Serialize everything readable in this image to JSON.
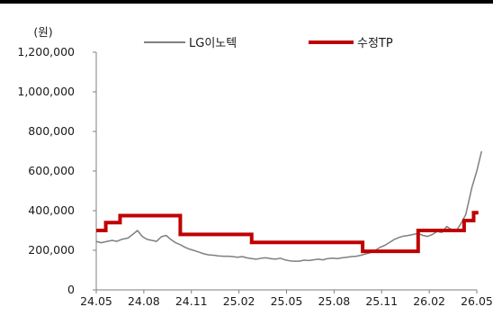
{
  "chart_data": {
    "type": "line",
    "title": "",
    "xlabel": "",
    "ylabel": "(원)",
    "ylim": [
      0,
      1200000
    ],
    "yticks": [
      0,
      200000,
      400000,
      600000,
      800000,
      1000000,
      1200000
    ],
    "ytick_labels": [
      "0",
      "200,000",
      "400,000",
      "600,000",
      "800,000",
      "1,000,000",
      "1,200,000"
    ],
    "xticks": [
      "24.05",
      "24.08",
      "24.11",
      "25.02",
      "25.05",
      "25.08",
      "25.11",
      "26.02",
      "26.05"
    ],
    "grid": false,
    "legend": "top-center",
    "series": [
      {
        "name": "LG이노텍",
        "style": "line",
        "color": "#7f7f7f",
        "x": [
          0.0,
          0.3,
          0.6,
          1.0,
          1.3,
          1.6,
          2.0,
          2.3,
          2.6,
          2.9,
          3.2,
          3.5,
          3.8,
          4.1,
          4.4,
          4.7,
          5.0,
          5.3,
          5.6,
          5.9,
          6.2,
          6.5,
          6.8,
          7.1,
          7.4,
          7.7,
          8.0,
          8.3,
          8.6,
          8.9,
          9.2,
          9.5,
          9.8,
          10.1,
          10.4,
          10.7,
          11.0,
          11.3,
          11.6,
          11.9,
          12.2,
          12.5,
          12.8,
          13.1,
          13.4,
          13.7,
          14.0,
          14.3,
          14.6,
          14.9,
          15.2,
          15.5,
          15.8,
          16.1,
          16.4,
          16.7,
          17.0,
          17.3,
          17.6,
          17.9,
          18.2,
          18.5,
          18.8,
          19.1,
          19.4,
          19.7,
          20.0,
          20.3,
          20.6,
          20.9,
          21.2,
          21.5,
          21.8,
          22.1,
          22.4,
          22.7,
          23.0,
          23.3,
          23.7,
          24.0,
          24.3
        ],
        "y": [
          245000,
          238000,
          243000,
          250000,
          245000,
          255000,
          262000,
          280000,
          300000,
          270000,
          255000,
          250000,
          245000,
          268000,
          275000,
          255000,
          238000,
          228000,
          215000,
          205000,
          198000,
          190000,
          182000,
          177000,
          175000,
          172000,
          170000,
          170000,
          168000,
          165000,
          168000,
          162000,
          158000,
          155000,
          160000,
          162000,
          158000,
          155000,
          160000,
          152000,
          147000,
          145000,
          145000,
          150000,
          148000,
          152000,
          155000,
          152000,
          158000,
          160000,
          158000,
          162000,
          165000,
          168000,
          170000,
          175000,
          182000,
          188000,
          200000,
          215000,
          225000,
          240000,
          255000,
          265000,
          272000,
          275000,
          280000,
          285000,
          275000,
          270000,
          280000,
          295000,
          290000,
          320000,
          305000,
          298000,
          335000,
          380000,
          520000,
          600000,
          700000
        ]
      },
      {
        "name": "수정TP",
        "style": "step",
        "color": "#c00000",
        "x": [
          0.0,
          0.6,
          1.5,
          4.3,
          5.3,
          9.8,
          13.0,
          16.8,
          18.4,
          19.2,
          20.3,
          20.6,
          21.7,
          23.2,
          23.6,
          23.8,
          24.1
        ],
        "y": [
          300000,
          340000,
          375000,
          375000,
          280000,
          240000,
          240000,
          195000,
          195000,
          195000,
          300000,
          300000,
          300000,
          350000,
          350000,
          390000,
          390000
        ]
      }
    ]
  }
}
